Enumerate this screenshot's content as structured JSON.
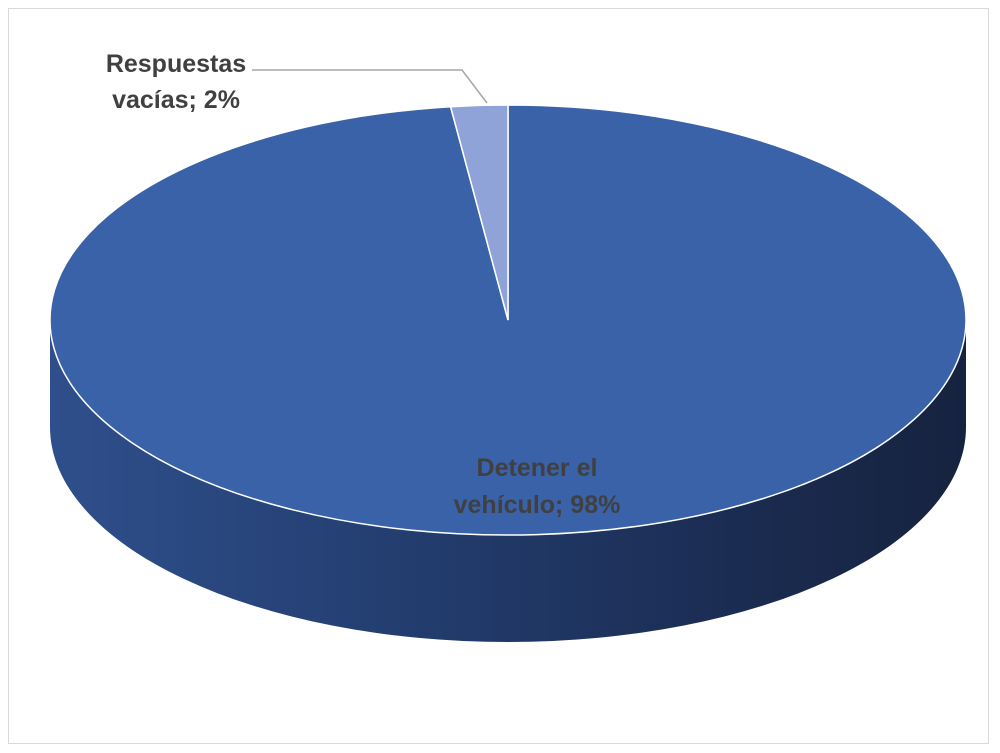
{
  "chart_data": {
    "type": "pie",
    "style": "3d",
    "title": "",
    "slices": [
      {
        "label": "Detener el vehículo",
        "value": 98,
        "display": "Detener el vehículo; 98%",
        "color": "#3a62a8"
      },
      {
        "label": "Respuestas vacías",
        "value": 2,
        "display": "Respuestas vacías; 2%",
        "color": "#8fa3d8"
      }
    ],
    "labels": {
      "slice0_line1": "Detener el",
      "slice0_line2": "vehículo; 98%",
      "slice1_line1": "Respuestas",
      "slice1_line2": "vacías; 2%"
    },
    "legend": "none",
    "side_color_dark": "#182746",
    "side_color_light": "#2f4f8c",
    "label_color_main": "#404040",
    "label_color_small": "#404040"
  }
}
